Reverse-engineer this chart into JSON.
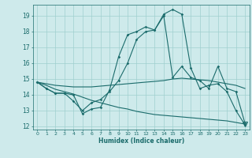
{
  "xlabel": "Humidex (Indice chaleur)",
  "bg_color": "#ceeaeb",
  "grid_color": "#9fcfcf",
  "line_color": "#1a6b6b",
  "xlim": [
    -0.5,
    23.5
  ],
  "ylim": [
    11.8,
    19.7
  ],
  "yticks": [
    12,
    13,
    14,
    15,
    16,
    17,
    18,
    19
  ],
  "xticks": [
    0,
    1,
    2,
    3,
    4,
    5,
    6,
    7,
    8,
    9,
    10,
    11,
    12,
    13,
    14,
    15,
    16,
    17,
    18,
    19,
    20,
    21,
    22,
    23
  ],
  "line1_x": [
    0,
    1,
    2,
    3,
    4,
    5,
    6,
    7,
    8,
    9,
    10,
    11,
    12,
    13,
    14,
    15,
    16,
    17,
    18,
    19,
    20,
    21,
    22,
    23
  ],
  "line1_y": [
    14.8,
    14.4,
    14.1,
    14.1,
    14.0,
    12.8,
    13.1,
    13.2,
    14.3,
    16.4,
    17.8,
    18.0,
    18.3,
    18.1,
    19.1,
    19.4,
    19.1,
    15.7,
    14.4,
    14.6,
    14.7,
    14.2,
    13.0,
    12.1
  ],
  "line2_x": [
    0,
    1,
    2,
    3,
    4,
    5,
    6,
    7,
    8,
    9,
    10,
    11,
    12,
    13,
    14,
    15,
    16,
    17,
    18,
    19,
    20,
    21,
    22,
    23
  ],
  "line2_y": [
    14.8,
    14.4,
    14.1,
    14.1,
    13.6,
    13.0,
    13.5,
    13.7,
    14.2,
    14.9,
    16.0,
    17.5,
    18.0,
    18.1,
    19.0,
    15.1,
    15.8,
    15.1,
    14.9,
    14.4,
    15.8,
    14.4,
    14.2,
    12.2
  ],
  "line3_x": [
    0,
    1,
    2,
    3,
    4,
    5,
    6,
    7,
    8,
    9,
    10,
    11,
    12,
    13,
    14,
    15,
    16,
    17,
    18,
    19,
    20,
    21,
    22,
    23
  ],
  "line3_y": [
    14.8,
    14.7,
    14.6,
    14.55,
    14.5,
    14.5,
    14.5,
    14.55,
    14.6,
    14.65,
    14.7,
    14.75,
    14.8,
    14.85,
    14.9,
    15.0,
    15.05,
    15.0,
    14.95,
    14.9,
    14.8,
    14.7,
    14.6,
    14.4
  ],
  "line4_x": [
    0,
    1,
    2,
    3,
    4,
    5,
    6,
    7,
    8,
    9,
    10,
    11,
    12,
    13,
    14,
    15,
    16,
    17,
    18,
    19,
    20,
    21,
    22,
    23
  ],
  "line4_y": [
    14.8,
    14.6,
    14.35,
    14.2,
    14.05,
    13.85,
    13.65,
    13.5,
    13.35,
    13.2,
    13.1,
    12.95,
    12.85,
    12.75,
    12.7,
    12.65,
    12.6,
    12.55,
    12.5,
    12.45,
    12.4,
    12.35,
    12.25,
    12.15
  ],
  "markers1": [
    [
      0,
      14.8
    ],
    [
      1,
      14.4
    ],
    [
      2,
      14.1
    ],
    [
      4,
      14.0
    ],
    [
      5,
      12.8
    ],
    [
      6,
      13.1
    ],
    [
      7,
      13.2
    ],
    [
      8,
      14.3
    ],
    [
      9,
      16.4
    ],
    [
      10,
      17.8
    ],
    [
      11,
      18.0
    ],
    [
      12,
      18.3
    ],
    [
      13,
      18.1
    ],
    [
      14,
      19.1
    ],
    [
      15,
      19.4
    ],
    [
      16,
      19.1
    ],
    [
      17,
      15.7
    ],
    [
      18,
      14.4
    ],
    [
      19,
      14.6
    ],
    [
      20,
      14.7
    ],
    [
      22,
      13.0
    ],
    [
      23,
      12.1
    ]
  ],
  "markers2": [
    [
      0,
      14.8
    ],
    [
      1,
      14.4
    ],
    [
      2,
      14.1
    ],
    [
      3,
      14.1
    ],
    [
      4,
      13.6
    ],
    [
      5,
      13.0
    ],
    [
      6,
      13.5
    ],
    [
      7,
      13.7
    ],
    [
      8,
      14.2
    ],
    [
      9,
      14.9
    ],
    [
      10,
      16.0
    ],
    [
      11,
      17.5
    ],
    [
      12,
      18.0
    ],
    [
      13,
      18.1
    ],
    [
      14,
      19.0
    ],
    [
      15,
      15.1
    ],
    [
      16,
      15.8
    ],
    [
      17,
      15.1
    ],
    [
      18,
      14.9
    ],
    [
      19,
      14.4
    ],
    [
      20,
      15.8
    ],
    [
      21,
      14.4
    ],
    [
      22,
      14.2
    ]
  ],
  "triangle_x": 23,
  "triangle_y": 12.15
}
